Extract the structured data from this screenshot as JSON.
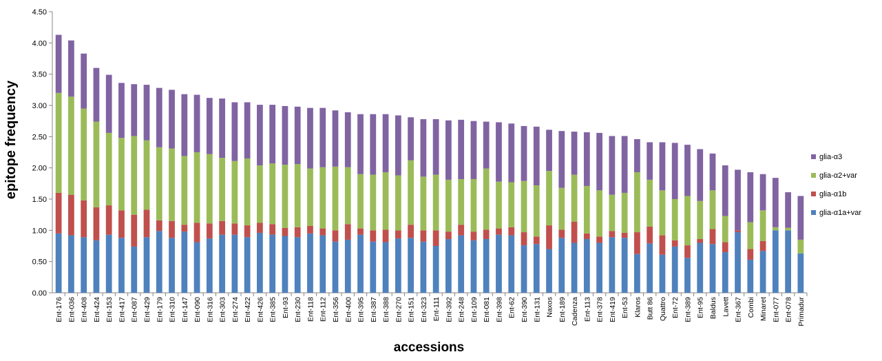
{
  "chart_data": {
    "type": "bar",
    "stacked": true,
    "title": "",
    "xlabel": "accessions",
    "ylabel": "epitope frequency",
    "ylim": [
      0,
      4.5
    ],
    "yticks": [
      "0.00",
      "0.50",
      "1.00",
      "1.50",
      "2.00",
      "2.50",
      "3.00",
      "3.50",
      "4.00",
      "4.50"
    ],
    "grid": false,
    "legend_position": "right",
    "categories": [
      "Ent-176",
      "Ent-036",
      "Ent-408",
      "Ent-424",
      "Ent-153",
      "Ent-417",
      "Ent-087",
      "Ent-429",
      "Ent-179",
      "Ent-310",
      "Ent-147",
      "Ent-090",
      "Ent-316",
      "Ent-303",
      "Ent-274",
      "Ent-422",
      "Ent-426",
      "Ent-385",
      "Ent-93",
      "Ent-230",
      "Ent-118",
      "Ent-112",
      "Ent-356",
      "Ent-400",
      "Ent-395",
      "Ent-387",
      "Ent-388",
      "Ent-270",
      "Ent-151",
      "Ent-323",
      "Ent-111",
      "Ent-392",
      "Ent-248",
      "Ent-109",
      "Ent-081",
      "Ent-398",
      "Ent-62",
      "Ent-390",
      "Ent-131",
      "Naxos",
      "Ent-189",
      "Cadenza",
      "Ent-113",
      "Ent-378",
      "Ent-419",
      "Ent-53",
      "Klaros",
      "Butt 86",
      "Quattro",
      "Ent-72",
      "Ent-389",
      "Ent-95",
      "Baldus",
      "Lavett",
      "Ent-367",
      "Combi",
      "Minaret",
      "Ent-077",
      "Ent-078",
      "Primadur"
    ],
    "series": [
      {
        "name": "glia-α1a+var",
        "color": "#4f81bd",
        "values": [
          0.95,
          0.92,
          0.89,
          0.84,
          0.93,
          0.88,
          0.74,
          0.89,
          0.99,
          0.88,
          0.98,
          0.81,
          0.87,
          0.93,
          0.93,
          0.89,
          0.96,
          0.93,
          0.91,
          0.89,
          0.95,
          0.92,
          0.82,
          0.85,
          0.93,
          0.82,
          0.81,
          0.87,
          0.88,
          0.82,
          0.75,
          0.86,
          0.92,
          0.84,
          0.86,
          0.93,
          0.92,
          0.76,
          0.78,
          0.7,
          0.88,
          0.8,
          0.86,
          0.8,
          0.89,
          0.88,
          0.62,
          0.79,
          0.61,
          0.74,
          0.56,
          0.8,
          0.78,
          0.65,
          0.97,
          0.53,
          0.67,
          1.0,
          1.0,
          0.63
        ]
      },
      {
        "name": "glia-α1b",
        "color": "#c0504d",
        "values": [
          0.65,
          0.65,
          0.59,
          0.53,
          0.47,
          0.44,
          0.51,
          0.44,
          0.17,
          0.27,
          0.11,
          0.31,
          0.24,
          0.22,
          0.18,
          0.19,
          0.16,
          0.17,
          0.13,
          0.16,
          0.12,
          0.11,
          0.18,
          0.25,
          0.1,
          0.18,
          0.2,
          0.13,
          0.21,
          0.18,
          0.25,
          0.12,
          0.17,
          0.14,
          0.15,
          0.1,
          0.13,
          0.21,
          0.12,
          0.38,
          0.13,
          0.34,
          0.09,
          0.1,
          0.1,
          0.08,
          0.35,
          0.27,
          0.31,
          0.1,
          0.2,
          0.06,
          0.24,
          0.16,
          0.03,
          0.17,
          0.16,
          0.0,
          0.0,
          0.0
        ]
      },
      {
        "name": "glia-α2+var",
        "color": "#9bbb59",
        "values": [
          1.6,
          1.57,
          1.47,
          1.37,
          1.16,
          1.16,
          1.26,
          1.11,
          1.17,
          1.16,
          1.1,
          1.13,
          1.11,
          1.01,
          1.0,
          1.07,
          0.92,
          0.97,
          1.01,
          1.01,
          0.92,
          0.98,
          1.02,
          0.91,
          0.87,
          0.89,
          0.92,
          0.88,
          1.03,
          0.86,
          0.89,
          0.83,
          0.73,
          0.84,
          0.98,
          0.75,
          0.72,
          0.82,
          0.82,
          0.87,
          0.67,
          0.75,
          0.76,
          0.74,
          0.58,
          0.64,
          0.96,
          0.75,
          0.72,
          0.66,
          0.79,
          0.61,
          0.62,
          0.42,
          0.0,
          0.43,
          0.49,
          0.05,
          0.04,
          0.22
        ]
      },
      {
        "name": "glia-α3",
        "color": "#8064a2",
        "values": [
          0.93,
          0.9,
          0.88,
          0.86,
          0.93,
          0.88,
          0.83,
          0.89,
          0.95,
          0.94,
          0.99,
          0.92,
          0.9,
          0.95,
          0.94,
          0.9,
          0.97,
          0.94,
          0.94,
          0.92,
          0.97,
          0.95,
          0.9,
          0.88,
          0.96,
          0.97,
          0.93,
          0.96,
          0.69,
          0.92,
          0.89,
          0.95,
          0.95,
          0.93,
          0.75,
          0.95,
          0.94,
          0.88,
          0.94,
          0.66,
          0.91,
          0.69,
          0.86,
          0.92,
          0.94,
          0.91,
          0.53,
          0.6,
          0.77,
          0.9,
          0.82,
          0.83,
          0.59,
          0.81,
          0.97,
          0.8,
          0.58,
          0.79,
          0.57,
          0.7
        ]
      }
    ],
    "legend_order": [
      "glia-α3",
      "glia-α2+var",
      "glia-α1b",
      "glia-α1a+var"
    ]
  }
}
